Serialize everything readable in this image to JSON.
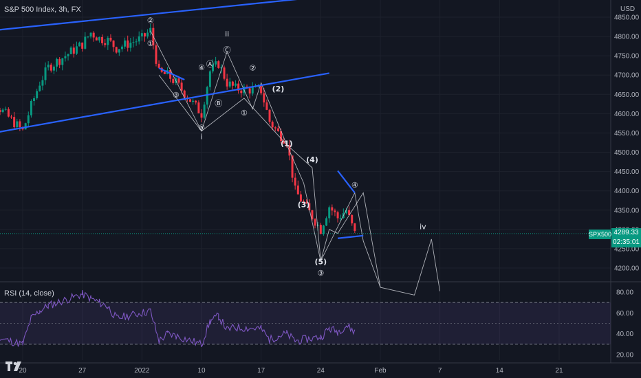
{
  "header": {
    "title": "S&P 500 Index, 3h, FX"
  },
  "currency": "USD",
  "last_price": {
    "symbol": "SPX500",
    "price": "4289.33",
    "countdown": "02:35:01"
  },
  "rsi": {
    "title": "RSI (14, close)",
    "levels": [
      80,
      60,
      40,
      20
    ]
  },
  "colors": {
    "background": "#131722",
    "up": "#089981",
    "down": "#f23645",
    "trendline": "#2962ff",
    "rsi_line": "#7e57c2",
    "rsi_band": "#2a2e39"
  },
  "chart_data": {
    "type": "candlestick",
    "title": "S&P 500 Index, 3h, FX",
    "y_unit": "USD",
    "ylim": [
      4160,
      4860
    ],
    "y_ticks": [
      4850,
      4800,
      4750,
      4700,
      4650,
      4600,
      4550,
      4500,
      4450,
      4400,
      4350,
      4300,
      4250,
      4200
    ],
    "x_ticks": [
      "20",
      "27",
      "2022",
      "10",
      "17",
      "24",
      "Feb",
      "7",
      "14",
      "21"
    ],
    "close_path": [
      {
        "x": "2021-12-14",
        "y": 4640
      },
      {
        "x": "2021-12-15",
        "y": 4710
      },
      {
        "x": "2021-12-16",
        "y": 4680
      },
      {
        "x": "2021-12-17",
        "y": 4620
      },
      {
        "x": "2021-12-20",
        "y": 4555
      },
      {
        "x": "2021-12-21",
        "y": 4620
      },
      {
        "x": "2021-12-22",
        "y": 4680
      },
      {
        "x": "2021-12-23",
        "y": 4720
      },
      {
        "x": "2021-12-27",
        "y": 4780
      },
      {
        "x": "2021-12-28",
        "y": 4810
      },
      {
        "x": "2021-12-29",
        "y": 4795
      },
      {
        "x": "2021-12-30",
        "y": 4790
      },
      {
        "x": "2021-12-31",
        "y": 4770
      },
      {
        "x": "2022-01-03",
        "y": 4795
      },
      {
        "x": "2022-01-04",
        "y": 4815
      },
      {
        "x": "2022-01-05",
        "y": 4705
      },
      {
        "x": "2022-01-06",
        "y": 4700
      },
      {
        "x": "2022-01-07",
        "y": 4680
      },
      {
        "x": "2022-01-10",
        "y": 4600
      },
      {
        "x": "2022-01-11",
        "y": 4710
      },
      {
        "x": "2022-01-12",
        "y": 4730
      },
      {
        "x": "2022-01-13",
        "y": 4680
      },
      {
        "x": "2022-01-14",
        "y": 4665
      },
      {
        "x": "2022-01-17",
        "y": 4660
      },
      {
        "x": "2022-01-18",
        "y": 4580
      },
      {
        "x": "2022-01-19",
        "y": 4550
      },
      {
        "x": "2022-01-20",
        "y": 4530
      },
      {
        "x": "2022-01-21",
        "y": 4400
      },
      {
        "x": "2022-01-24",
        "y": 4300
      },
      {
        "x": "2022-01-25",
        "y": 4360
      },
      {
        "x": "2022-01-26",
        "y": 4330
      },
      {
        "x": "2022-01-27",
        "y": 4350
      },
      {
        "x": "2022-01-28",
        "y": 4289
      }
    ],
    "rsi_path": [
      {
        "x": "2021-12-14",
        "y": 40
      },
      {
        "x": "2021-12-15",
        "y": 60
      },
      {
        "x": "2021-12-16",
        "y": 45
      },
      {
        "x": "2021-12-17",
        "y": 36
      },
      {
        "x": "2021-12-20",
        "y": 30
      },
      {
        "x": "2021-12-21",
        "y": 55
      },
      {
        "x": "2021-12-22",
        "y": 62
      },
      {
        "x": "2021-12-23",
        "y": 67
      },
      {
        "x": "2021-12-27",
        "y": 78
      },
      {
        "x": "2021-12-28",
        "y": 74
      },
      {
        "x": "2021-12-29",
        "y": 70
      },
      {
        "x": "2021-12-30",
        "y": 66
      },
      {
        "x": "2021-12-31",
        "y": 55
      },
      {
        "x": "2022-01-03",
        "y": 60
      },
      {
        "x": "2022-01-04",
        "y": 62
      },
      {
        "x": "2022-01-05",
        "y": 33
      },
      {
        "x": "2022-01-06",
        "y": 40
      },
      {
        "x": "2022-01-07",
        "y": 38
      },
      {
        "x": "2022-01-10",
        "y": 30
      },
      {
        "x": "2022-01-11",
        "y": 52
      },
      {
        "x": "2022-01-12",
        "y": 57
      },
      {
        "x": "2022-01-13",
        "y": 44
      },
      {
        "x": "2022-01-14",
        "y": 46
      },
      {
        "x": "2022-01-17",
        "y": 45
      },
      {
        "x": "2022-01-18",
        "y": 34
      },
      {
        "x": "2022-01-19",
        "y": 38
      },
      {
        "x": "2022-01-20",
        "y": 40
      },
      {
        "x": "2022-01-21",
        "y": 33
      },
      {
        "x": "2022-01-24",
        "y": 37
      },
      {
        "x": "2022-01-25",
        "y": 45
      },
      {
        "x": "2022-01-26",
        "y": 42
      },
      {
        "x": "2022-01-27",
        "y": 48
      },
      {
        "x": "2022-01-28",
        "y": 42
      }
    ],
    "trendlines": [
      {
        "from": {
          "x": "2021-12-14",
          "y": 4810
        },
        "to": {
          "x": "2022-01-25",
          "y": 4905
        }
      },
      {
        "from": {
          "x": "2021-12-14",
          "y": 4540
        },
        "to": {
          "x": "2022-01-25",
          "y": 4705
        }
      },
      {
        "from": {
          "x": "2022-01-05",
          "y": 4718
        },
        "to": {
          "x": "2022-01-08",
          "y": 4688
        }
      },
      {
        "from": {
          "x": "2022-01-26",
          "y": 4452
        },
        "to": {
          "x": "2022-01-28",
          "y": 4395
        }
      },
      {
        "from": {
          "x": "2022-01-26",
          "y": 4277
        },
        "to": {
          "x": "2022-01-29",
          "y": 4284
        }
      }
    ],
    "wave_labels": [
      {
        "text": "②",
        "x": "2022-01-04",
        "y": 4835
      },
      {
        "text": "①",
        "x": "2022-01-04",
        "y": 4775
      },
      {
        "text": "ii",
        "x": "2022-01-13",
        "y": 4800
      },
      {
        "text": "Ⓒ",
        "x": "2022-01-13",
        "y": 4758
      },
      {
        "text": "④",
        "x": "2022-01-10",
        "y": 4713
      },
      {
        "text": "Ⓐ",
        "x": "2022-01-11",
        "y": 4722
      },
      {
        "text": "②",
        "x": "2022-01-16",
        "y": 4712
      },
      {
        "text": "③",
        "x": "2022-01-07",
        "y": 4642
      },
      {
        "text": "Ⓑ",
        "x": "2022-01-12",
        "y": 4620
      },
      {
        "text": "(2)",
        "x": "2022-01-19",
        "y": 4658
      },
      {
        "text": "①",
        "x": "2022-01-15",
        "y": 4595
      },
      {
        "text": "⑤",
        "x": "2022-01-10",
        "y": 4557
      },
      {
        "text": "i",
        "x": "2022-01-10",
        "y": 4534
      },
      {
        "text": "(1)",
        "x": "2022-01-20",
        "y": 4516
      },
      {
        "text": "(4)",
        "x": "2022-01-23",
        "y": 4474
      },
      {
        "text": "(3)",
        "x": "2022-01-22",
        "y": 4358
      },
      {
        "text": "④",
        "x": "2022-01-28",
        "y": 4408
      },
      {
        "text": "iv",
        "x": "2022-02-05",
        "y": 4301
      },
      {
        "text": "(5)",
        "x": "2022-01-24",
        "y": 4210
      },
      {
        "text": "③",
        "x": "2022-01-24",
        "y": 4180
      }
    ],
    "projection_path": [
      {
        "x": "2022-01-04",
        "y": 4815
      },
      {
        "x": "2022-01-10",
        "y": 4555
      },
      {
        "x": "2022-01-13",
        "y": 4760
      },
      {
        "x": "2022-01-16",
        "y": 4612
      },
      {
        "x": "2022-01-17",
        "y": 4680
      },
      {
        "x": "2022-01-20",
        "y": 4520
      },
      {
        "x": "2022-01-23",
        "y": 4460
      },
      {
        "x": "2022-01-24",
        "y": 4218
      },
      {
        "x": "2022-01-28",
        "y": 4395
      },
      {
        "x": "2022-01-29",
        "y": 4270
      },
      {
        "x": "2022-01-31",
        "y": 4150
      },
      {
        "x": "2022-02-04",
        "y": 4130
      },
      {
        "x": "2022-02-06",
        "y": 4275
      },
      {
        "x": "2022-02-07",
        "y": 4140
      }
    ],
    "projection_path_2": [
      {
        "x": "2022-01-05",
        "y": 4700
      },
      {
        "x": "2022-01-10",
        "y": 4555
      },
      {
        "x": "2022-01-15",
        "y": 4640
      },
      {
        "x": "2022-01-20",
        "y": 4520
      },
      {
        "x": "2022-01-22",
        "y": 4420
      },
      {
        "x": "2022-01-24",
        "y": 4218
      },
      {
        "x": "2022-01-25",
        "y": 4300
      },
      {
        "x": "2022-01-26",
        "y": 4290
      },
      {
        "x": "2022-01-29",
        "y": 4395
      },
      {
        "x": "2022-01-31",
        "y": 4150
      }
    ]
  }
}
